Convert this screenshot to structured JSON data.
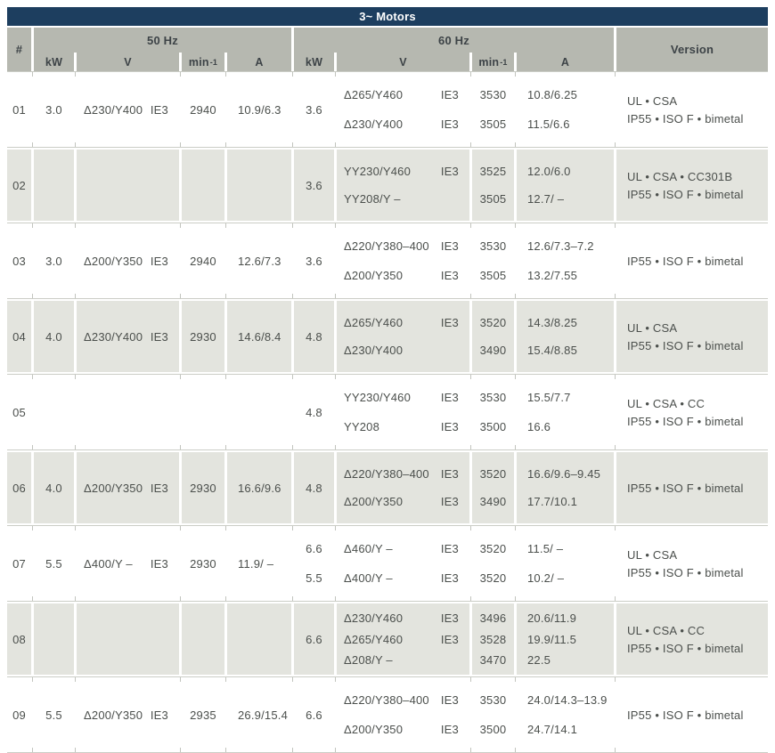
{
  "title": "3~ Motors",
  "header": {
    "num": "#",
    "hz50": "50 Hz",
    "hz60": "60 Hz",
    "version": "Version",
    "kw": "kW",
    "v": "V",
    "min": "min",
    "min_sup": "-1",
    "a": "A"
  },
  "rows": [
    {
      "id": "01",
      "shade": false,
      "f50": {
        "kw": "3.0",
        "v": "Δ230/Y400",
        "ie": "IE3",
        "min": "2940",
        "a": "10.9/6.3"
      },
      "f60": {
        "kw": [
          "3.6"
        ],
        "subs": [
          {
            "v": "Δ265/Y460",
            "ie": "IE3",
            "min": "3530",
            "a": "10.8/6.25"
          },
          {
            "v": "Δ230/Y400",
            "ie": "IE3",
            "min": "3505",
            "a": "11.5/6.6"
          }
        ]
      },
      "version": [
        "UL • CSA",
        "IP55 • ISO F • bimetal"
      ]
    },
    {
      "id": "02",
      "shade": true,
      "f50": {
        "kw": "",
        "v": "",
        "ie": "",
        "min": "",
        "a": ""
      },
      "f60": {
        "kw": [
          "3.6"
        ],
        "subs": [
          {
            "v": "YY230/Y460",
            "ie": "IE3",
            "min": "3525",
            "a": "12.0/6.0"
          },
          {
            "v": "YY208/Y –",
            "ie": "",
            "min": "3505",
            "a": "12.7/ –"
          }
        ]
      },
      "version": [
        "UL • CSA • CC301B",
        "IP55 • ISO F • bimetal"
      ]
    },
    {
      "id": "03",
      "shade": false,
      "f50": {
        "kw": "3.0",
        "v": "Δ200/Y350",
        "ie": "IE3",
        "min": "2940",
        "a": "12.6/7.3"
      },
      "f60": {
        "kw": [
          "3.6"
        ],
        "subs": [
          {
            "v": "Δ220/Y380–400",
            "ie": "IE3",
            "min": "3530",
            "a": "12.6/7.3–7.2"
          },
          {
            "v": "Δ200/Y350",
            "ie": "IE3",
            "min": "3505",
            "a": "13.2/7.55"
          }
        ]
      },
      "version": [
        "IP55 • ISO F • bimetal"
      ]
    },
    {
      "id": "04",
      "shade": true,
      "f50": {
        "kw": "4.0",
        "v": "Δ230/Y400",
        "ie": "IE3",
        "min": "2930",
        "a": "14.6/8.4"
      },
      "f60": {
        "kw": [
          "4.8"
        ],
        "subs": [
          {
            "v": "Δ265/Y460",
            "ie": "IE3",
            "min": "3520",
            "a": "14.3/8.25"
          },
          {
            "v": "Δ230/Y400",
            "ie": "",
            "min": "3490",
            "a": "15.4/8.85"
          }
        ]
      },
      "version": [
        "UL • CSA",
        "IP55 • ISO F • bimetal"
      ]
    },
    {
      "id": "05",
      "shade": false,
      "f50": {
        "kw": "",
        "v": "",
        "ie": "",
        "min": "",
        "a": ""
      },
      "f60": {
        "kw": [
          "4.8"
        ],
        "subs": [
          {
            "v": "YY230/Y460",
            "ie": "IE3",
            "min": "3530",
            "a": "15.5/7.7"
          },
          {
            "v": "YY208",
            "ie": "IE3",
            "min": "3500",
            "a": "16.6"
          }
        ]
      },
      "version": [
        "UL • CSA • CC",
        "IP55 • ISO F • bimetal"
      ]
    },
    {
      "id": "06",
      "shade": true,
      "f50": {
        "kw": "4.0",
        "v": "Δ200/Y350",
        "ie": "IE3",
        "min": "2930",
        "a": "16.6/9.6"
      },
      "f60": {
        "kw": [
          "4.8"
        ],
        "subs": [
          {
            "v": "Δ220/Y380–400",
            "ie": "IE3",
            "min": "3520",
            "a": "16.6/9.6–9.45"
          },
          {
            "v": "Δ200/Y350",
            "ie": "IE3",
            "min": "3490",
            "a": "17.7/10.1"
          }
        ]
      },
      "version": [
        "IP55 • ISO F • bimetal"
      ]
    },
    {
      "id": "07",
      "shade": false,
      "f50": {
        "kw": "5.5",
        "v": "Δ400/Y –",
        "ie": "IE3",
        "min": "2930",
        "a": "11.9/ –"
      },
      "f60": {
        "kw": [
          "6.6",
          "5.5"
        ],
        "subs": [
          {
            "v": "Δ460/Y –",
            "ie": "IE3",
            "min": "3520",
            "a": "11.5/ –"
          },
          {
            "v": "Δ400/Y –",
            "ie": "IE3",
            "min": "3520",
            "a": "10.2/ –"
          }
        ]
      },
      "version": [
        "UL • CSA",
        "IP55 • ISO F • bimetal"
      ]
    },
    {
      "id": "08",
      "shade": true,
      "f50": {
        "kw": "",
        "v": "",
        "ie": "",
        "min": "",
        "a": ""
      },
      "f60": {
        "kw": [
          "6.6"
        ],
        "subs": [
          {
            "v": "Δ230/Y460",
            "ie": "IE3",
            "min": "3496",
            "a": "20.6/11.9"
          },
          {
            "v": "Δ265/Y460",
            "ie": "IE3",
            "min": "3528",
            "a": "19.9/11.5"
          },
          {
            "v": "Δ208/Y –",
            "ie": "",
            "min": "3470",
            "a": "22.5"
          }
        ]
      },
      "version": [
        "UL • CSA • CC",
        "IP55 • ISO F • bimetal"
      ]
    },
    {
      "id": "09",
      "shade": false,
      "f50": {
        "kw": "5.5",
        "v": "Δ200/Y350",
        "ie": "IE3",
        "min": "2935",
        "a": "26.9/15.4"
      },
      "f60": {
        "kw": [
          "6.6"
        ],
        "subs": [
          {
            "v": "Δ220/Y380–400",
            "ie": "IE3",
            "min": "3530",
            "a": "24.0/14.3–13.9"
          },
          {
            "v": "Δ200/Y350",
            "ie": "IE3",
            "min": "3500",
            "a": "24.7/14.1"
          }
        ]
      },
      "version": [
        "IP55 • ISO F • bimetal"
      ]
    }
  ],
  "colors": {
    "title_bg": "#1d3e5f",
    "header_bg": "#b6b8b0",
    "row_shade_bg": "#e3e4de",
    "line": "#cbcdc6",
    "text": "#4b4f4c"
  }
}
